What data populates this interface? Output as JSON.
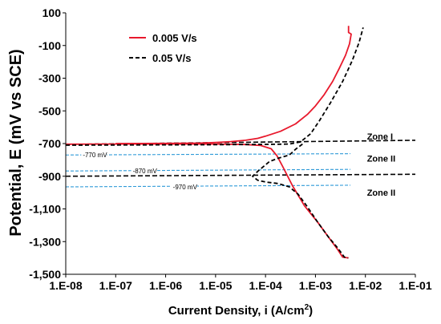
{
  "chart_data": {
    "type": "line",
    "title": "",
    "xlabel": "Current Density, i (A/cm",
    "xlabel_sup": "2",
    "xlabel_end": ")",
    "ylabel": "Potential, E (mV vs SCE)",
    "x_scale": "log",
    "xlim": [
      1e-08,
      0.1
    ],
    "ylim": [
      -1500,
      100
    ],
    "x_ticks": [
      "1.E-08",
      "1.E-07",
      "1.E-06",
      "1.E-05",
      "1.E-04",
      "1.E-03",
      "1.E-02",
      "1.E-01"
    ],
    "y_ticks": [
      "100",
      "-100",
      "-300",
      "-500",
      "-700",
      "-900",
      "-1,100",
      "-1,300",
      "-1,500"
    ],
    "legend_position": "top-left",
    "grid": false,
    "series": [
      {
        "name": "0.005 V/s",
        "color": "#e8192c",
        "style": "solid",
        "points": [
          [
            1e-07,
            -700
          ],
          [
            1e-06,
            -699
          ],
          [
            5e-06,
            -697
          ],
          [
            1e-05,
            -693
          ],
          [
            2e-05,
            -688
          ],
          [
            4e-05,
            -680
          ],
          [
            7e-05,
            -668
          ],
          [
            0.0001,
            -655
          ],
          [
            0.0002,
            -625
          ],
          [
            0.0004,
            -580
          ],
          [
            0.0007,
            -520
          ],
          [
            0.001,
            -470
          ],
          [
            0.0015,
            -400
          ],
          [
            0.0022,
            -320
          ],
          [
            0.003,
            -240
          ],
          [
            0.004,
            -160
          ],
          [
            0.0048,
            -90
          ],
          [
            0.0052,
            -30
          ],
          [
            0.0046,
            -20
          ],
          [
            0.0046,
            20
          ],
          [
            1e-08,
            -704
          ],
          [
            1e-07,
            -703
          ],
          [
            1e-06,
            -703
          ],
          [
            1e-05,
            -703
          ],
          [
            4e-05,
            -706
          ],
          [
            8e-05,
            -712
          ],
          [
            0.00013,
            -732
          ],
          [
            0.00017,
            -775
          ],
          [
            0.00022,
            -840
          ],
          [
            0.00035,
            -960
          ],
          [
            0.0006,
            -1080
          ],
          [
            0.0011,
            -1180
          ],
          [
            0.0018,
            -1270
          ],
          [
            0.0028,
            -1350
          ],
          [
            0.0035,
            -1395
          ],
          [
            0.0046,
            -1400
          ]
        ],
        "segments": [
          20
        ]
      },
      {
        "name": "0.05 V/s",
        "color": "#000000",
        "style": "dashed",
        "points": [
          [
            1e-08,
            -710
          ],
          [
            1e-07,
            -709
          ],
          [
            1e-06,
            -708
          ],
          [
            1e-05,
            -707
          ],
          [
            4e-05,
            -706
          ],
          [
            0.0001,
            -705
          ],
          [
            0.0002,
            -704
          ],
          [
            0.0003,
            -703
          ],
          [
            0.0005,
            -690
          ],
          [
            0.0008,
            -640
          ],
          [
            0.0012,
            -560
          ],
          [
            0.002,
            -450
          ],
          [
            0.0035,
            -320
          ],
          [
            0.0055,
            -190
          ],
          [
            0.0075,
            -80
          ],
          [
            0.009,
            10
          ],
          [
            0.00055,
            -703
          ],
          [
            0.0004,
            -735
          ],
          [
            0.0003,
            -770
          ],
          [
            0.00018,
            -790
          ],
          [
            0.00012,
            -810
          ],
          [
            7e-05,
            -870
          ],
          [
            5.5e-05,
            -900
          ],
          [
            7e-05,
            -925
          ],
          [
            0.0001,
            -935
          ],
          [
            0.00018,
            -945
          ],
          [
            0.0003,
            -965
          ],
          [
            0.00045,
            -1010
          ],
          [
            0.0007,
            -1090
          ],
          [
            0.0011,
            -1180
          ],
          [
            0.0018,
            -1270
          ],
          [
            0.0028,
            -1340
          ],
          [
            0.0038,
            -1395
          ],
          [
            0.0045,
            -1400
          ]
        ],
        "segments": [
          16
        ]
      }
    ],
    "reference_lines": [
      {
        "label": "Zone I",
        "x": [
          1e-08,
          0.1
        ],
        "y": [
          -705,
          -680
        ],
        "color": "#000000",
        "style": "dashed"
      },
      {
        "label": "",
        "x": [
          1e-08,
          0.1
        ],
        "y": [
          -900,
          -888
        ],
        "color": "#000000",
        "style": "dashed"
      },
      {
        "label": "-770 mV",
        "x": [
          1e-08,
          0.005
        ],
        "y": [
          -770,
          -762
        ],
        "color": "#2f9ad8",
        "style": "dashed"
      },
      {
        "label": "-870 mV",
        "x": [
          1e-08,
          0.005
        ],
        "y": [
          -868,
          -858
        ],
        "color": "#2f9ad8",
        "style": "dashed"
      },
      {
        "label": "-970 mV",
        "x": [
          1e-08,
          0.005
        ],
        "y": [
          -965,
          -955
        ],
        "color": "#2f9ad8",
        "style": "dashed"
      }
    ],
    "annotations": [
      {
        "text": "Zone I",
        "x": 0.01,
        "y": -655
      },
      {
        "text": "Zone II",
        "x": 0.01,
        "y": -790
      },
      {
        "text": "Zone II",
        "x": 0.01,
        "y": -1000
      }
    ]
  }
}
